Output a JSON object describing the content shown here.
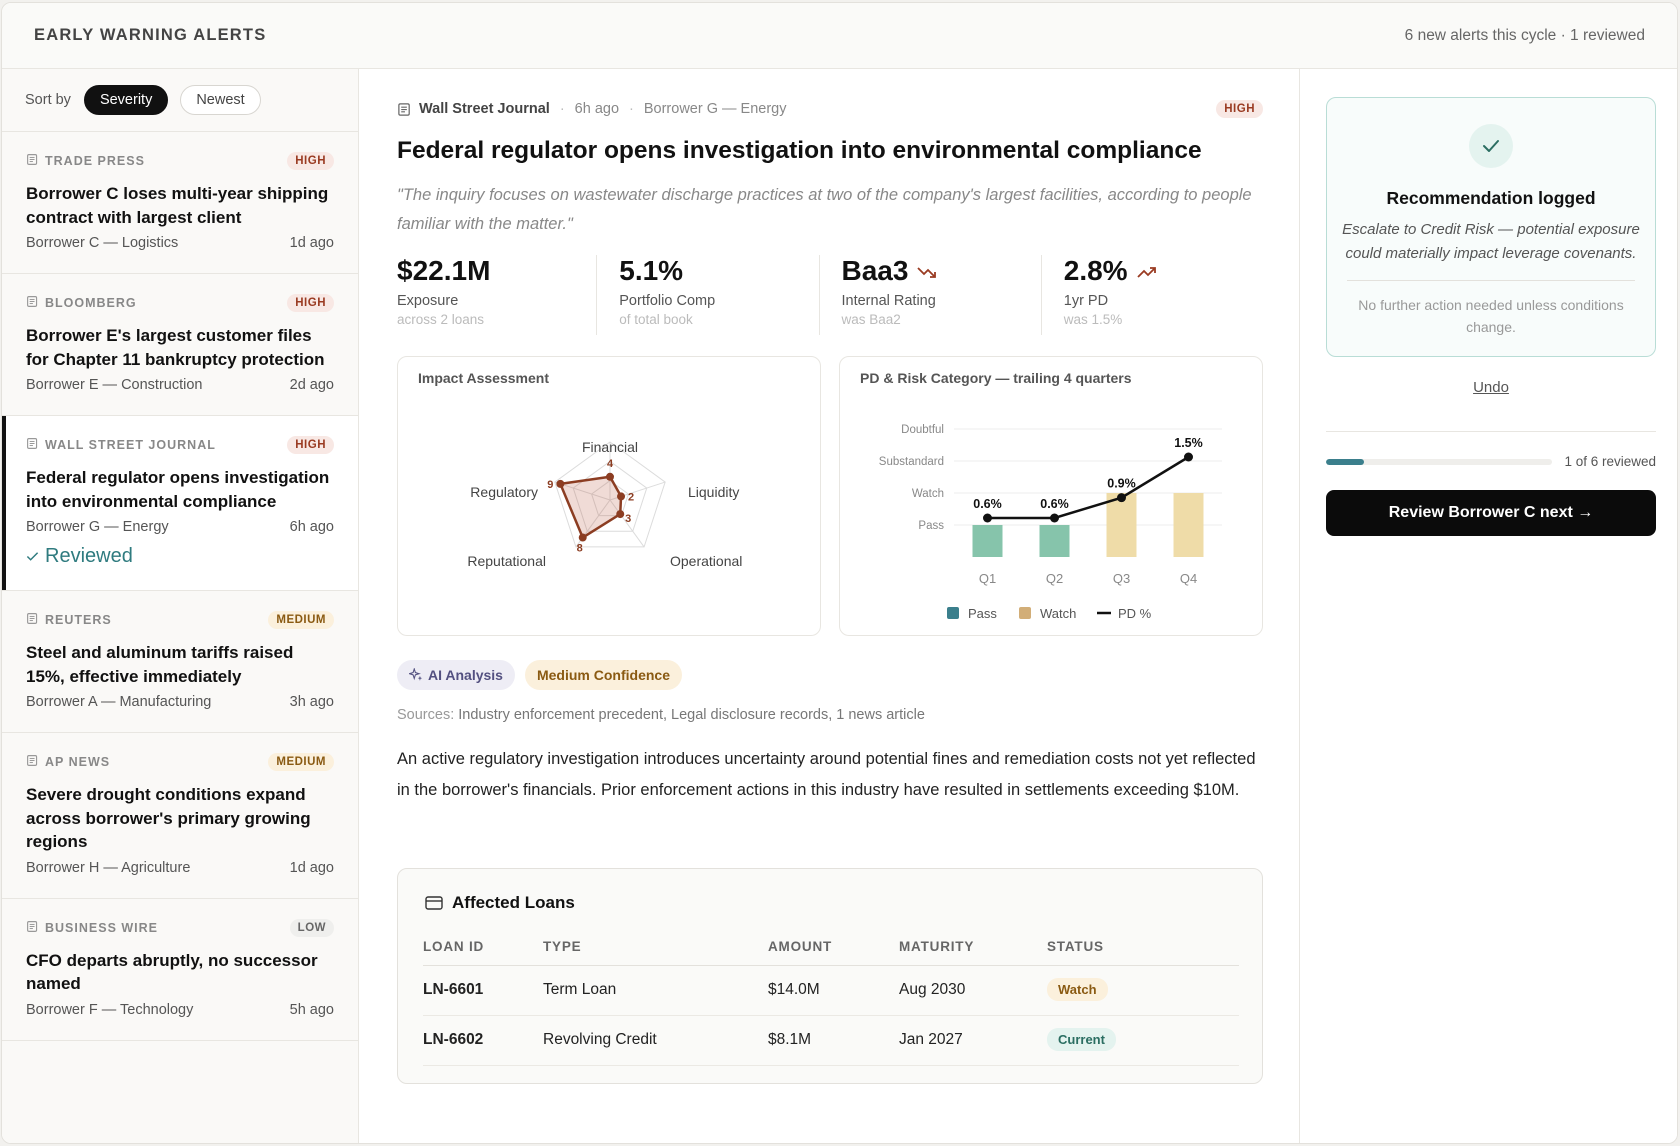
{
  "header": {
    "title": "EARLY WARNING ALERTS",
    "meta": "6 new alerts this cycle · 1 reviewed"
  },
  "sort": {
    "label": "Sort by",
    "options": [
      "Severity",
      "Newest"
    ],
    "active": "Severity"
  },
  "alerts": [
    {
      "source": "TRADE PRESS",
      "severity": "HIGH",
      "headline": "Borrower C loses multi-year shipping contract with largest client",
      "borrower": "Borrower C — Logistics",
      "age": "1d ago"
    },
    {
      "source": "BLOOMBERG",
      "severity": "HIGH",
      "headline": "Borrower E's largest customer files for Chapter 11 bankruptcy protection",
      "borrower": "Borrower E — Construction",
      "age": "2d ago"
    },
    {
      "source": "WALL STREET JOURNAL",
      "severity": "HIGH",
      "headline": "Federal regulator opens investigation into environmental compliance",
      "borrower": "Borrower G — Energy",
      "age": "6h ago",
      "reviewed": "Reviewed"
    },
    {
      "source": "REUTERS",
      "severity": "MEDIUM",
      "headline": "Steel and aluminum tariffs raised 15%, effective immediately",
      "borrower": "Borrower A — Manufacturing",
      "age": "3h ago"
    },
    {
      "source": "AP NEWS",
      "severity": "MEDIUM",
      "headline": "Severe drought conditions expand across borrower's primary growing regions",
      "borrower": "Borrower H — Agriculture",
      "age": "1d ago"
    },
    {
      "source": "BUSINESS WIRE",
      "severity": "LOW",
      "headline": "CFO departs abruptly, no successor named",
      "borrower": "Borrower F — Technology",
      "age": "5h ago"
    }
  ],
  "detail": {
    "source": "Wall Street Journal",
    "age": "6h ago",
    "borrower": "Borrower G — Energy",
    "severity": "HIGH",
    "title": "Federal regulator opens investigation into environmental compliance",
    "quote": "\"The inquiry focuses on wastewater discharge practices at two of the company's largest facilities, according to people familiar with the matter.\"",
    "metrics": [
      {
        "value": "$22.1M",
        "label": "Exposure",
        "sub": "across 2 loans",
        "trend": ""
      },
      {
        "value": "5.1%",
        "label": "Portfolio Comp",
        "sub": "of total book",
        "trend": ""
      },
      {
        "value": "Baa3",
        "label": "Internal Rating",
        "sub": "was Baa2",
        "trend": "down"
      },
      {
        "value": "2.8%",
        "label": "1yr PD",
        "sub": "was 1.5%",
        "trend": "up"
      }
    ],
    "ai_chip": "AI Analysis",
    "confidence_chip": "Medium Confidence",
    "sources_label": "Sources:",
    "sources_value": "Industry enforcement precedent, Legal disclosure records, 1 news article",
    "analysis": "An active regulatory investigation introduces uncertainty around potential fines and remediation costs not yet reflected in the borrower's financials. Prior enforcement actions in this industry have resulted in settlements exceeding $10M.",
    "loans": {
      "title": "Affected Loans",
      "columns": [
        "LOAN ID",
        "TYPE",
        "AMOUNT",
        "MATURITY",
        "STATUS"
      ],
      "rows": [
        {
          "id": "LN-6601",
          "type": "Term Loan",
          "amount": "$14.0M",
          "maturity": "Aug 2030",
          "status": "Watch"
        },
        {
          "id": "LN-6602",
          "type": "Revolving Credit",
          "amount": "$8.1M",
          "maturity": "Jan 2027",
          "status": "Current"
        }
      ]
    }
  },
  "chart_data": [
    {
      "type": "radar",
      "title": "Impact Assessment",
      "axes": [
        "Financial",
        "Liquidity",
        "Operational",
        "Reputational",
        "Regulatory"
      ],
      "values": [
        4,
        2,
        3,
        8,
        9
      ],
      "max": 10,
      "color": "#8c3d22"
    },
    {
      "type": "bar+line",
      "title": "PD & Risk Category — trailing 4 quarters",
      "categories": [
        "Q1",
        "Q2",
        "Q3",
        "Q4"
      ],
      "y_categories": [
        "Pass",
        "Watch",
        "Substandard",
        "Doubtful"
      ],
      "bars": {
        "name": "Pass",
        "values": [
          "Pass",
          "Pass",
          "Watch",
          "Watch"
        ]
      },
      "line": {
        "name": "PD %",
        "values": [
          0.6,
          0.6,
          0.9,
          1.5
        ],
        "labels": [
          "0.6%",
          "0.6%",
          "0.9%",
          "1.5%"
        ]
      },
      "legend": [
        "Pass",
        "Watch",
        "PD %"
      ],
      "colors": {
        "pass_bar": "#86c4ab",
        "watch_bar": "#efdca8",
        "pass_legend": "#3b7f8c",
        "watch_legend": "#d2ae78",
        "line": "#111111"
      }
    }
  ],
  "recommendation": {
    "title": "Recommendation logged",
    "text": "Escalate to Credit Risk — potential exposure could materially impact leverage covenants.",
    "note": "No further action needed unless conditions change.",
    "undo": "Undo",
    "progress_fraction": 0.1667,
    "progress_text": "1 of 6 reviewed",
    "next_button": "Review Borrower C next →"
  }
}
